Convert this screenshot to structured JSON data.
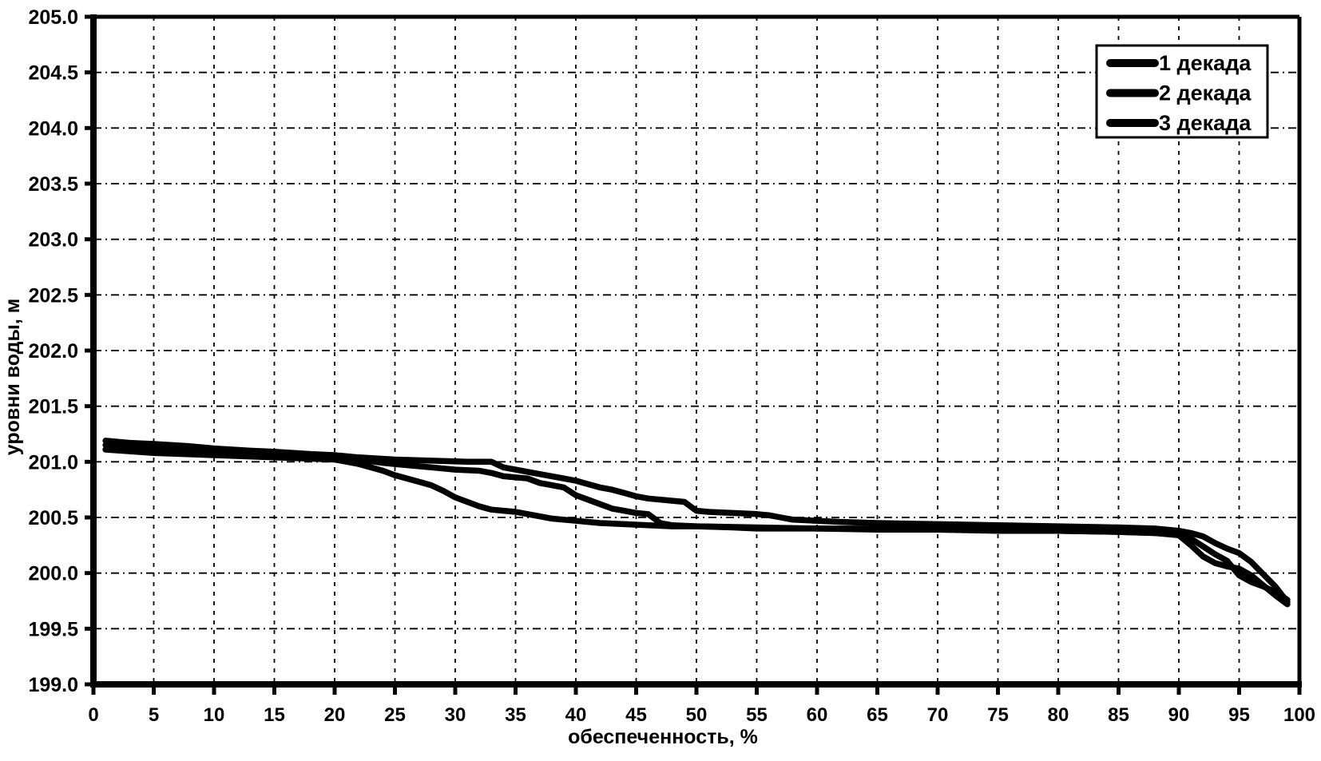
{
  "chart_data": {
    "type": "line",
    "title": "",
    "xlabel": "обеспеченность, %",
    "ylabel": "уровни воды, м",
    "xlim": [
      0,
      100
    ],
    "ylim": [
      199.0,
      205.0
    ],
    "xtick_step": 5,
    "ytick_step": 0.5,
    "ytick_decimals": 1,
    "grid": true,
    "grid_style": "dashed",
    "line_color": "#000000",
    "background_color": "#ffffff",
    "legend": {
      "position": "top-right",
      "entries": [
        "1 декада",
        "2 декада",
        "3 декада"
      ]
    },
    "series": [
      {
        "name": "1 декада",
        "points": [
          [
            1,
            201.19
          ],
          [
            3,
            201.17
          ],
          [
            5,
            201.16
          ],
          [
            8,
            201.14
          ],
          [
            10,
            201.12
          ],
          [
            13,
            201.1
          ],
          [
            15,
            201.09
          ],
          [
            18,
            201.07
          ],
          [
            20,
            201.06
          ],
          [
            22,
            201.04
          ],
          [
            25,
            201.02
          ],
          [
            28,
            201.01
          ],
          [
            31,
            201.0
          ],
          [
            33,
            201.0
          ],
          [
            34,
            200.95
          ],
          [
            35,
            200.93
          ],
          [
            36,
            200.91
          ],
          [
            37,
            200.89
          ],
          [
            38,
            200.87
          ],
          [
            39,
            200.85
          ],
          [
            40,
            200.83
          ],
          [
            41,
            200.8
          ],
          [
            42,
            200.77
          ],
          [
            43,
            200.75
          ],
          [
            44,
            200.72
          ],
          [
            45,
            200.69
          ],
          [
            46,
            200.67
          ],
          [
            47,
            200.66
          ],
          [
            48,
            200.65
          ],
          [
            49,
            200.64
          ],
          [
            49.5,
            200.6
          ],
          [
            50,
            200.56
          ],
          [
            51,
            200.55
          ],
          [
            53,
            200.54
          ],
          [
            55,
            200.53
          ],
          [
            56,
            200.52
          ],
          [
            57,
            200.5
          ],
          [
            58,
            200.48
          ],
          [
            60,
            200.47
          ],
          [
            62,
            200.46
          ],
          [
            65,
            200.45
          ],
          [
            70,
            200.44
          ],
          [
            75,
            200.43
          ],
          [
            80,
            200.42
          ],
          [
            85,
            200.41
          ],
          [
            88,
            200.4
          ],
          [
            90,
            200.38
          ],
          [
            91,
            200.36
          ],
          [
            92,
            200.33
          ],
          [
            93,
            200.27
          ],
          [
            94,
            200.22
          ],
          [
            95,
            200.18
          ],
          [
            96,
            200.1
          ],
          [
            97,
            199.99
          ],
          [
            98,
            199.88
          ],
          [
            99,
            199.74
          ]
        ]
      },
      {
        "name": "2 декада",
        "points": [
          [
            1,
            201.15
          ],
          [
            5,
            201.12
          ],
          [
            10,
            201.09
          ],
          [
            15,
            201.06
          ],
          [
            20,
            201.04
          ],
          [
            22,
            201.02
          ],
          [
            24,
            200.99
          ],
          [
            25,
            200.98
          ],
          [
            27,
            200.96
          ],
          [
            29,
            200.94
          ],
          [
            30,
            200.93
          ],
          [
            32,
            200.92
          ],
          [
            33,
            200.9
          ],
          [
            34,
            200.87
          ],
          [
            35,
            200.86
          ],
          [
            36,
            200.85
          ],
          [
            37,
            200.81
          ],
          [
            38,
            200.79
          ],
          [
            39,
            200.77
          ],
          [
            40,
            200.7
          ],
          [
            41,
            200.66
          ],
          [
            42,
            200.62
          ],
          [
            43,
            200.58
          ],
          [
            44,
            200.56
          ],
          [
            45,
            200.54
          ],
          [
            46,
            200.53
          ],
          [
            46.5,
            200.49
          ],
          [
            47,
            200.45
          ],
          [
            48,
            200.43
          ],
          [
            50,
            200.42
          ],
          [
            55,
            200.41
          ],
          [
            60,
            200.4
          ],
          [
            65,
            200.4
          ],
          [
            70,
            200.39
          ],
          [
            75,
            200.39
          ],
          [
            80,
            200.38
          ],
          [
            85,
            200.37
          ],
          [
            88,
            200.36
          ],
          [
            90,
            200.34
          ],
          [
            91,
            200.25
          ],
          [
            92,
            200.15
          ],
          [
            93,
            200.09
          ],
          [
            94,
            200.06
          ],
          [
            95,
            200.04
          ],
          [
            96,
            199.98
          ],
          [
            97,
            199.89
          ],
          [
            98,
            199.8
          ],
          [
            99,
            199.72
          ]
        ]
      },
      {
        "name": "3 декада",
        "points": [
          [
            1,
            201.11
          ],
          [
            5,
            201.08
          ],
          [
            10,
            201.06
          ],
          [
            15,
            201.04
          ],
          [
            20,
            201.02
          ],
          [
            22,
            200.98
          ],
          [
            23,
            200.95
          ],
          [
            24,
            200.92
          ],
          [
            25,
            200.88
          ],
          [
            26,
            200.85
          ],
          [
            27,
            200.82
          ],
          [
            28,
            200.79
          ],
          [
            29,
            200.74
          ],
          [
            30,
            200.68
          ],
          [
            31,
            200.64
          ],
          [
            32,
            200.6
          ],
          [
            33,
            200.57
          ],
          [
            34,
            200.56
          ],
          [
            35,
            200.55
          ],
          [
            36,
            200.53
          ],
          [
            37,
            200.51
          ],
          [
            38,
            200.49
          ],
          [
            39,
            200.48
          ],
          [
            40,
            200.47
          ],
          [
            42,
            200.45
          ],
          [
            44,
            200.44
          ],
          [
            46,
            200.43
          ],
          [
            48,
            200.42
          ],
          [
            50,
            200.42
          ],
          [
            53,
            200.41
          ],
          [
            55,
            200.4
          ],
          [
            60,
            200.4
          ],
          [
            65,
            200.39
          ],
          [
            70,
            200.39
          ],
          [
            75,
            200.38
          ],
          [
            80,
            200.38
          ],
          [
            85,
            200.37
          ],
          [
            88,
            200.36
          ],
          [
            90,
            200.35
          ],
          [
            91,
            200.31
          ],
          [
            92,
            200.24
          ],
          [
            93,
            200.17
          ],
          [
            94,
            200.11
          ],
          [
            95,
            199.98
          ],
          [
            96,
            199.92
          ],
          [
            97,
            199.88
          ],
          [
            98,
            199.83
          ],
          [
            99,
            199.76
          ]
        ]
      }
    ]
  }
}
